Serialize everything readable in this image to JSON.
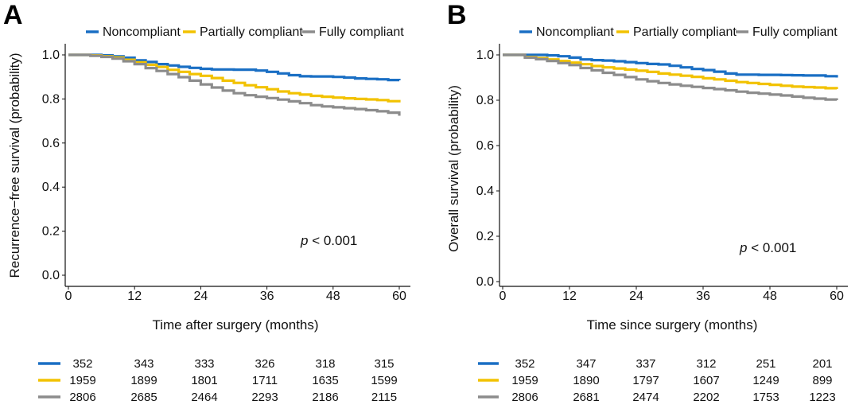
{
  "colors": {
    "noncompliant": "#1a6fc4",
    "partially": "#f2c200",
    "fully": "#8c8c8c"
  },
  "chart_data": [
    {
      "panel": "A",
      "type": "line",
      "xlabel": "Time after surgery (months)",
      "ylabel": "Recurrence−free survival (probability)",
      "xticks": [
        "0",
        "12",
        "24",
        "36",
        "48",
        "60"
      ],
      "yticks": [
        "0.0",
        "0.2",
        "0.4",
        "0.6",
        "0.8",
        "1.0"
      ],
      "xlim": [
        0,
        60
      ],
      "ylim": [
        0,
        1
      ],
      "legend_position": "top",
      "p_value": {
        "prefix": "p",
        "rest": " < 0.001"
      },
      "series": [
        {
          "name": "Noncompliant",
          "color_key": "noncompliant",
          "x": [
            0,
            4,
            6,
            8,
            10,
            12,
            14,
            16,
            18,
            20,
            22,
            24,
            26,
            28,
            30,
            32,
            34,
            36,
            38,
            40,
            42,
            44,
            46,
            48,
            50,
            52,
            54,
            56,
            58,
            60
          ],
          "y": [
            1.0,
            1.0,
            0.998,
            0.993,
            0.987,
            0.975,
            0.968,
            0.958,
            0.952,
            0.946,
            0.941,
            0.937,
            0.934,
            0.934,
            0.933,
            0.933,
            0.929,
            0.923,
            0.916,
            0.908,
            0.903,
            0.902,
            0.902,
            0.9,
            0.897,
            0.893,
            0.891,
            0.889,
            0.886,
            0.885
          ]
        },
        {
          "name": "Partially compliant",
          "color_key": "partially",
          "x": [
            0,
            4,
            6,
            8,
            10,
            12,
            14,
            16,
            18,
            20,
            22,
            24,
            26,
            28,
            30,
            32,
            34,
            36,
            38,
            40,
            42,
            44,
            46,
            48,
            50,
            52,
            54,
            56,
            58,
            60
          ],
          "y": [
            1.0,
            0.998,
            0.994,
            0.988,
            0.978,
            0.966,
            0.955,
            0.945,
            0.932,
            0.923,
            0.913,
            0.905,
            0.895,
            0.883,
            0.873,
            0.862,
            0.853,
            0.844,
            0.834,
            0.826,
            0.82,
            0.814,
            0.81,
            0.806,
            0.803,
            0.8,
            0.798,
            0.795,
            0.79,
            0.784
          ]
        },
        {
          "name": "Fully compliant",
          "color_key": "fully",
          "x": [
            0,
            4,
            6,
            8,
            10,
            12,
            14,
            16,
            18,
            20,
            22,
            24,
            26,
            28,
            30,
            32,
            34,
            36,
            38,
            40,
            42,
            44,
            46,
            48,
            50,
            52,
            54,
            56,
            58,
            60
          ],
          "y": [
            1.0,
            0.996,
            0.991,
            0.983,
            0.971,
            0.958,
            0.94,
            0.927,
            0.913,
            0.899,
            0.883,
            0.866,
            0.852,
            0.838,
            0.826,
            0.817,
            0.81,
            0.804,
            0.797,
            0.789,
            0.781,
            0.772,
            0.766,
            0.762,
            0.758,
            0.754,
            0.749,
            0.744,
            0.738,
            0.724
          ]
        }
      ],
      "at_risk": {
        "Noncompliant": [
          "352",
          "343",
          "333",
          "326",
          "318",
          "315"
        ],
        "Partially compliant": [
          "1959",
          "1899",
          "1801",
          "1711",
          "1635",
          "1599"
        ],
        "Fully compliant": [
          "2806",
          "2685",
          "2464",
          "2293",
          "2186",
          "2115"
        ]
      }
    },
    {
      "panel": "B",
      "type": "line",
      "xlabel": "Time since surgery (months)",
      "ylabel": "Overall survival (probability)",
      "xticks": [
        "0",
        "12",
        "24",
        "36",
        "48",
        "60"
      ],
      "yticks": [
        "0.0",
        "0.2",
        "0.4",
        "0.6",
        "0.8",
        "1.0"
      ],
      "xlim": [
        0,
        60
      ],
      "ylim": [
        0,
        1
      ],
      "legend_position": "top",
      "p_value": {
        "prefix": "p",
        "rest": " < 0.001"
      },
      "series": [
        {
          "name": "Noncompliant",
          "color_key": "noncompliant",
          "x": [
            0,
            4,
            6,
            8,
            10,
            12,
            14,
            16,
            18,
            20,
            22,
            24,
            26,
            28,
            30,
            32,
            34,
            36,
            38,
            40,
            42,
            44,
            46,
            48,
            50,
            52,
            54,
            56,
            58,
            60
          ],
          "y": [
            1.0,
            1.0,
            1.0,
            0.998,
            0.994,
            0.988,
            0.98,
            0.977,
            0.975,
            0.972,
            0.968,
            0.964,
            0.96,
            0.958,
            0.952,
            0.945,
            0.938,
            0.933,
            0.926,
            0.918,
            0.913,
            0.913,
            0.912,
            0.912,
            0.911,
            0.91,
            0.909,
            0.909,
            0.906,
            0.9
          ]
        },
        {
          "name": "Partially compliant",
          "color_key": "partially",
          "x": [
            0,
            4,
            6,
            8,
            10,
            12,
            14,
            16,
            18,
            20,
            22,
            24,
            26,
            28,
            30,
            32,
            34,
            36,
            38,
            40,
            42,
            44,
            46,
            48,
            50,
            52,
            54,
            56,
            58,
            60
          ],
          "y": [
            1.0,
            0.991,
            0.986,
            0.98,
            0.973,
            0.966,
            0.959,
            0.951,
            0.945,
            0.94,
            0.935,
            0.93,
            0.925,
            0.918,
            0.913,
            0.908,
            0.903,
            0.897,
            0.892,
            0.886,
            0.88,
            0.876,
            0.872,
            0.868,
            0.864,
            0.86,
            0.858,
            0.856,
            0.853,
            0.849
          ]
        },
        {
          "name": "Fully compliant",
          "color_key": "fully",
          "x": [
            0,
            4,
            6,
            8,
            10,
            12,
            14,
            16,
            18,
            20,
            22,
            24,
            26,
            28,
            30,
            32,
            34,
            36,
            38,
            40,
            42,
            44,
            46,
            48,
            50,
            52,
            54,
            56,
            58,
            60
          ],
          "y": [
            1.0,
            0.988,
            0.981,
            0.973,
            0.964,
            0.955,
            0.942,
            0.932,
            0.921,
            0.912,
            0.902,
            0.892,
            0.884,
            0.876,
            0.87,
            0.864,
            0.859,
            0.854,
            0.849,
            0.844,
            0.838,
            0.833,
            0.829,
            0.825,
            0.821,
            0.816,
            0.811,
            0.807,
            0.803,
            0.8
          ]
        }
      ],
      "at_risk": {
        "Noncompliant": [
          "352",
          "347",
          "337",
          "312",
          "251",
          "201"
        ],
        "Partially compliant": [
          "1959",
          "1890",
          "1797",
          "1607",
          "1249",
          "899"
        ],
        "Fully compliant": [
          "2806",
          "2681",
          "2474",
          "2202",
          "1753",
          "1223"
        ]
      }
    }
  ]
}
